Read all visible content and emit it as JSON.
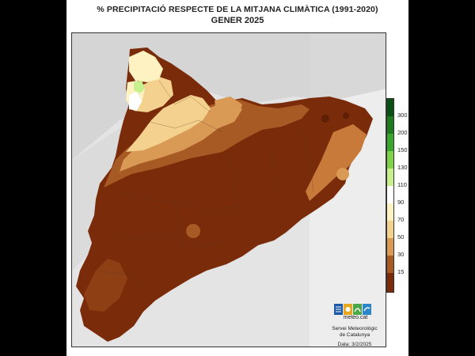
{
  "title": "% PRECIPITACIÓ RESPECTE DE LA MITJANA CLIMÀTICA (1991-2020)",
  "subtitle": "GENER 2025",
  "legend": {
    "ticks": [
      "300",
      "200",
      "150",
      "130",
      "110",
      "90",
      "70",
      "50",
      "30",
      "15"
    ],
    "colors": [
      "#0a4f14",
      "#1f7a1f",
      "#3aa62e",
      "#7fd14a",
      "#c7ef8e",
      "#ffffff",
      "#fff2c2",
      "#f4d18e",
      "#d99a55",
      "#a85a24",
      "#7a2c0a"
    ]
  },
  "logo_text": "meteo.cat",
  "credit_line1": "Servei Meteorològic",
  "credit_line2": "de Catalunya",
  "date_label": "Data: 3/2/2025"
}
